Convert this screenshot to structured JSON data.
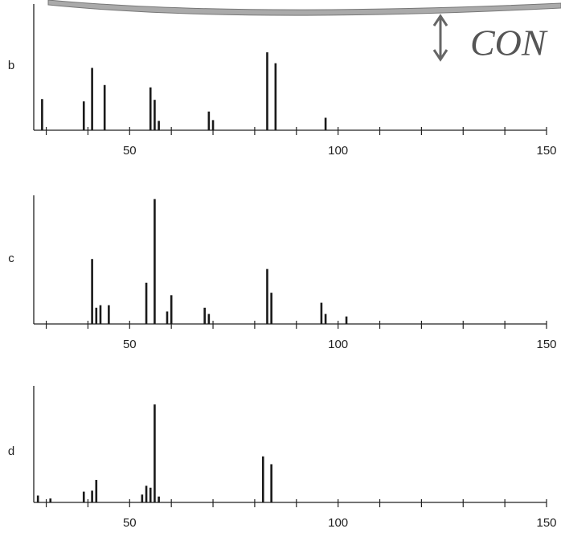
{
  "chart_data": [
    {
      "type": "bar",
      "label": "b",
      "x": [
        29,
        39,
        41,
        44,
        55,
        56,
        57,
        69,
        70,
        83,
        85,
        97
      ],
      "values": [
        40,
        37,
        80,
        58,
        55,
        39,
        12,
        24,
        13,
        100,
        86,
        16
      ],
      "color": "#1a1a1a",
      "xlim": [
        27,
        150
      ],
      "ylim": [
        0,
        162
      ],
      "xticks": [
        50,
        100,
        150
      ],
      "xminorticks": [
        30,
        40,
        60,
        70,
        80,
        90,
        110,
        120,
        130,
        140
      ]
    },
    {
      "type": "bar",
      "label": "c",
      "x": [
        41,
        42,
        43,
        45,
        54,
        56,
        59,
        60,
        68,
        69,
        83,
        84,
        96,
        97,
        102
      ],
      "values": [
        52,
        13,
        15,
        15,
        33,
        100,
        10,
        23,
        13,
        8,
        44,
        25,
        17,
        8,
        6
      ],
      "color": "#1a1a1a",
      "xlim": [
        27,
        150
      ],
      "ylim": [
        0,
        103
      ],
      "xticks": [
        50,
        100,
        150
      ],
      "xminorticks": [
        30,
        40,
        60,
        70,
        80,
        90,
        110,
        120,
        130,
        140
      ]
    },
    {
      "type": "bar",
      "label": "d",
      "x": [
        28,
        31,
        39,
        41,
        42,
        53,
        54,
        55,
        56,
        57,
        82,
        84
      ],
      "values": [
        7,
        4,
        11,
        12,
        23,
        8,
        17,
        15,
        100,
        6,
        47,
        39
      ],
      "color": "#1a1a1a",
      "xlim": [
        27,
        150
      ],
      "ylim": [
        0,
        119
      ],
      "xticks": [
        50,
        100,
        150
      ],
      "xminorticks": [
        30,
        40,
        60,
        70,
        80,
        90,
        110,
        120,
        130,
        140
      ]
    }
  ],
  "annotation": "CON"
}
